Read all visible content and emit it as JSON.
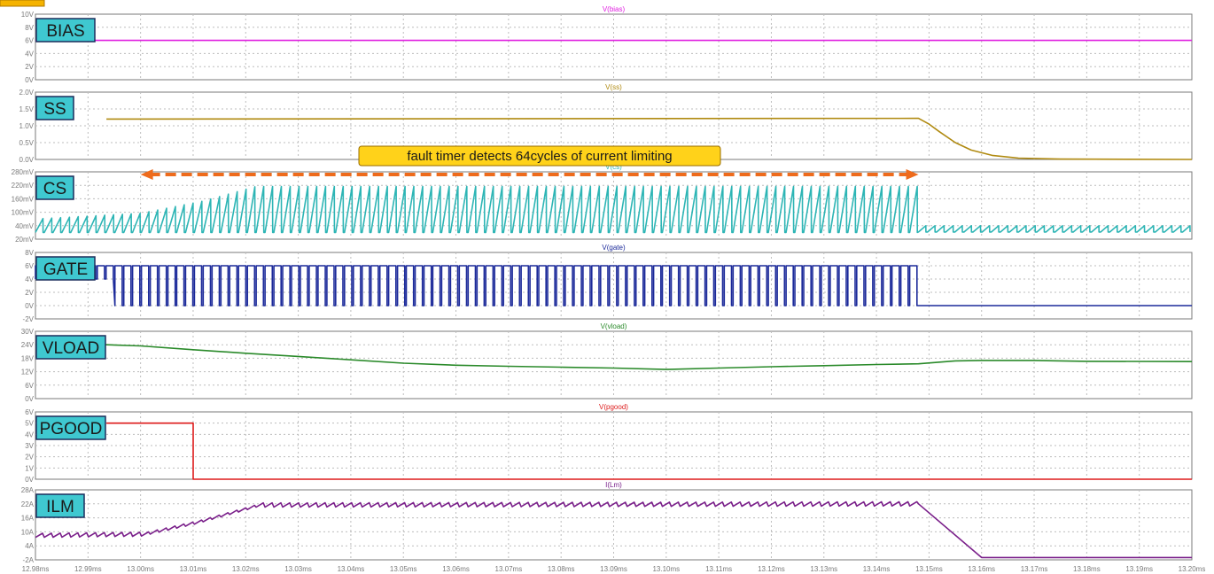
{
  "chart_data": {
    "type": "line",
    "x_axis": {
      "unit": "ms",
      "range": [
        12.98,
        13.2
      ],
      "tick_labels": [
        "12.98ms",
        "12.99ms",
        "13.00ms",
        "13.01ms",
        "13.02ms",
        "13.03ms",
        "13.04ms",
        "13.05ms",
        "13.06ms",
        "13.07ms",
        "13.08ms",
        "13.09ms",
        "13.10ms",
        "13.11ms",
        "13.12ms",
        "13.13ms",
        "13.14ms",
        "13.15ms",
        "13.16ms",
        "13.17ms",
        "13.18ms",
        "13.19ms",
        "13.20ms"
      ]
    },
    "grid": true,
    "annotation": {
      "text": "fault timer detects 64cycles of current limiting",
      "x_range": [
        13.0,
        13.148
      ],
      "color": "#ee6b1c"
    },
    "panels": [
      {
        "id": "bias",
        "label": "BIAS",
        "trace_title": "V(bias)",
        "color": "#e020e0",
        "ylim": [
          0,
          10
        ],
        "tick_labels": [
          "10V",
          "8V",
          "6V",
          "4V",
          "2V",
          "0V"
        ],
        "kind": "points",
        "points": [
          [
            12.98,
            6.0
          ],
          [
            13.2,
            6.0
          ]
        ]
      },
      {
        "id": "ss",
        "label": "SS",
        "trace_title": "V(ss)",
        "color": "#b08a10",
        "ylim": [
          0,
          2
        ],
        "tick_labels": [
          "2.0V",
          "1.5V",
          "1.0V",
          "0.5V",
          "0.0V"
        ],
        "kind": "points",
        "points": [
          [
            12.9935,
            1.2
          ],
          [
            13.148,
            1.22
          ],
          [
            13.15,
            1.05
          ],
          [
            13.152,
            0.82
          ],
          [
            13.155,
            0.5
          ],
          [
            13.158,
            0.28
          ],
          [
            13.162,
            0.12
          ],
          [
            13.167,
            0.04
          ],
          [
            13.175,
            0.01
          ],
          [
            13.2,
            0.0
          ]
        ]
      },
      {
        "id": "cs",
        "label": "CS",
        "trace_title": "V(cs)",
        "color": "#2db5b5",
        "ylim": [
          -20,
          280
        ],
        "tick_labels": [
          "280mV",
          "220mV",
          "160mV",
          "100mV",
          "40mV",
          "20mV"
        ],
        "kind": "sawtooth",
        "cycles_start": 12.98,
        "cycles_end": 13.148,
        "cycles": 100,
        "low": 10,
        "peak_profile": [
          [
            12.98,
            70
          ],
          [
            13.0,
            95
          ],
          [
            13.012,
            150
          ],
          [
            13.022,
            215
          ],
          [
            13.148,
            215
          ]
        ],
        "after_fault": {
          "start": 13.148,
          "end": 13.2,
          "cycles": 30,
          "low": 12,
          "peak": 40
        }
      },
      {
        "id": "gate",
        "label": "GATE",
        "trace_title": "V(gate)",
        "color": "#1c2a9a",
        "ylim": [
          -2,
          8
        ],
        "tick_labels": [
          "8V",
          "6V",
          "4V",
          "2V",
          "0V",
          "-2V"
        ],
        "kind": "pulse",
        "cycles_start": 12.98,
        "cycles_end": 13.148,
        "cycles": 100,
        "high": 6.0,
        "low_early": 4.0,
        "low_early_until": 12.9935,
        "low": 0.0,
        "duty": 0.82,
        "after": 0.0
      },
      {
        "id": "vload",
        "label": "VLOAD",
        "trace_title": "V(vload)",
        "color": "#2a8a2a",
        "ylim": [
          0,
          30
        ],
        "tick_labels": [
          "30V",
          "24V",
          "18V",
          "12V",
          "6V",
          "0V"
        ],
        "kind": "points",
        "points": [
          [
            12.98,
            24.0
          ],
          [
            12.9935,
            24.0
          ],
          [
            13.0,
            23.5
          ],
          [
            13.01,
            21.8
          ],
          [
            13.02,
            20.2
          ],
          [
            13.03,
            18.8
          ],
          [
            13.04,
            17.3
          ],
          [
            13.05,
            15.8
          ],
          [
            13.06,
            14.9
          ],
          [
            13.07,
            14.4
          ],
          [
            13.08,
            14.0
          ],
          [
            13.09,
            13.6
          ],
          [
            13.1,
            13.0
          ],
          [
            13.11,
            13.6
          ],
          [
            13.12,
            14.2
          ],
          [
            13.13,
            14.7
          ],
          [
            13.14,
            15.2
          ],
          [
            13.148,
            15.5
          ],
          [
            13.155,
            16.8
          ],
          [
            13.16,
            17.0
          ],
          [
            13.17,
            17.0
          ],
          [
            13.18,
            16.6
          ],
          [
            13.2,
            16.5
          ]
        ]
      },
      {
        "id": "pgood",
        "label": "PGOOD",
        "trace_title": "V(pgood)",
        "color": "#dd1a1a",
        "ylim": [
          0,
          6
        ],
        "tick_labels": [
          "6V",
          "5V",
          "4V",
          "3V",
          "2V",
          "1V",
          "0V"
        ],
        "kind": "points",
        "points": [
          [
            12.9935,
            5.0
          ],
          [
            13.01,
            5.0
          ],
          [
            13.01,
            0.0
          ],
          [
            13.2,
            0.0
          ]
        ]
      },
      {
        "id": "ilm",
        "label": "ILM",
        "trace_title": "I(Lm)",
        "color": "#7a1f8a",
        "ylim": [
          -2,
          28
        ],
        "tick_labels": [
          "28A",
          "22A",
          "16A",
          "10A",
          "4A",
          "-2A"
        ],
        "kind": "ripple",
        "ripple_start": 12.98,
        "ripple_end": 13.148,
        "ripple_cycles": 100,
        "ripple_amp": 0.9,
        "profile": [
          [
            12.98,
            8.5
          ],
          [
            13.0,
            9.0
          ],
          [
            13.01,
            14.0
          ],
          [
            13.022,
            21.5
          ],
          [
            13.148,
            22.0
          ]
        ],
        "tail": [
          [
            13.148,
            22.0
          ],
          [
            13.16,
            -1.0
          ],
          [
            13.2,
            -1.0
          ]
        ]
      }
    ]
  }
}
